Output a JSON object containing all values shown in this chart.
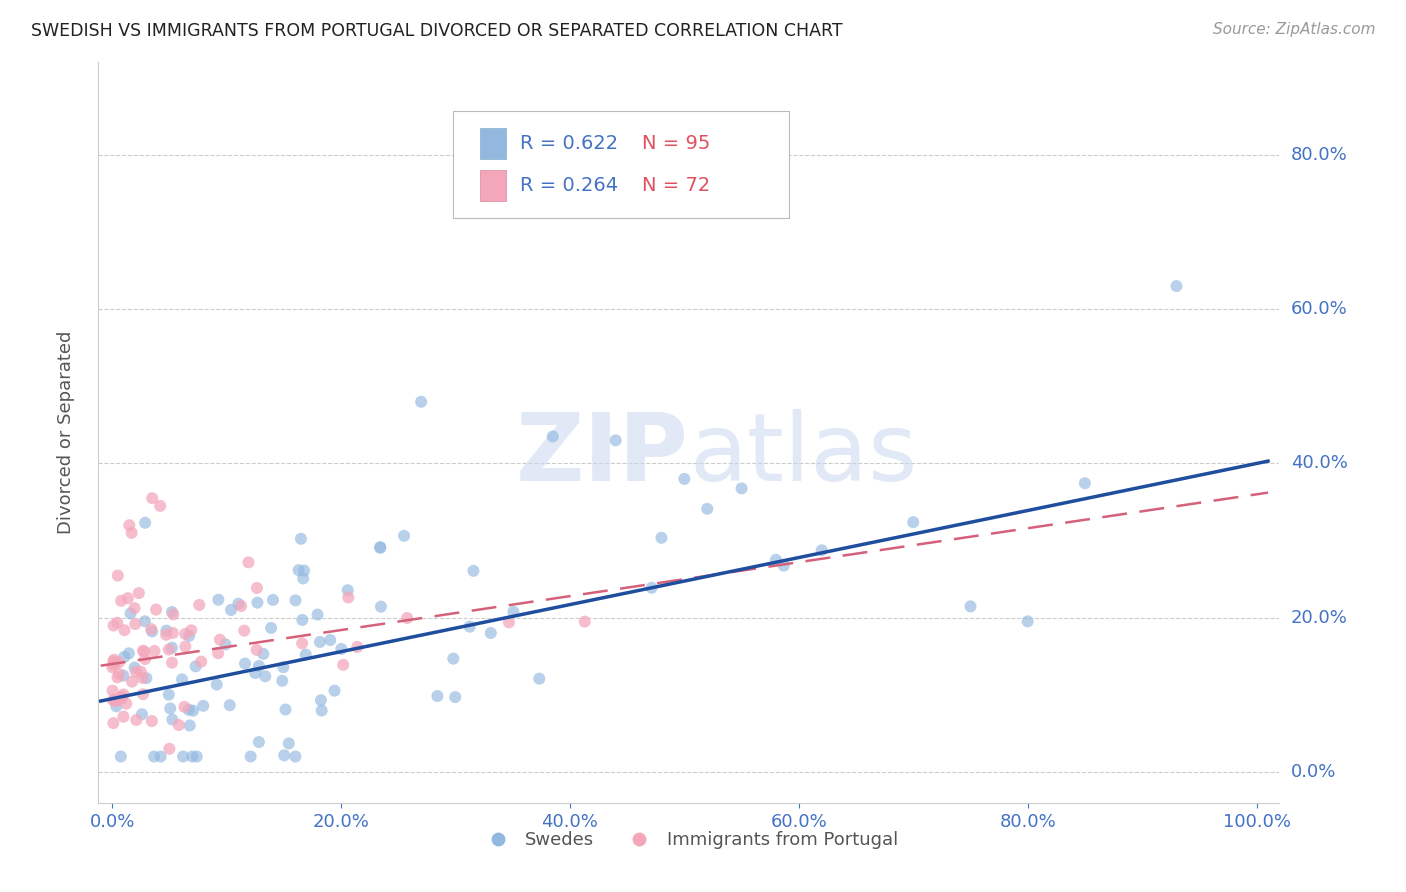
{
  "title": "SWEDISH VS IMMIGRANTS FROM PORTUGAL DIVORCED OR SEPARATED CORRELATION CHART",
  "source": "Source: ZipAtlas.com",
  "ylabel": "Divorced or Separated",
  "blue_color": "#92b8e0",
  "pink_color": "#f4a7bb",
  "blue_line_color": "#1f4e9e",
  "pink_line_color": "#d4607a",
  "ytick_color": "#4472c4",
  "xtick_color": "#4472c4",
  "legend_R1": "R = 0.622",
  "legend_N1": "N = 95",
  "legend_R2": "R = 0.264",
  "legend_N2": "N = 72",
  "legend_label1": "Swedes",
  "legend_label2": "Immigrants from Portugal",
  "watermark": "ZIPatlas",
  "background_color": "#ffffff",
  "grid_color": "#cccccc",
  "blue_intercept": 0.095,
  "blue_slope": 0.305,
  "pink_intercept": 0.14,
  "pink_slope": 0.22
}
